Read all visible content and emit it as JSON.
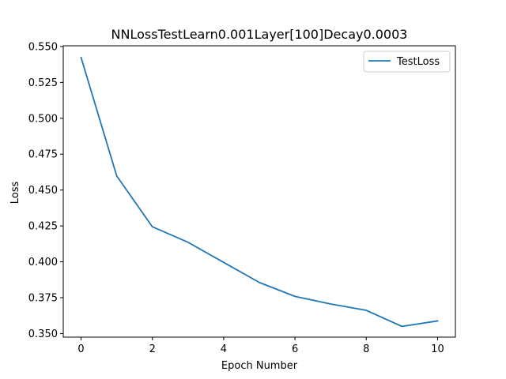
{
  "chart_data": {
    "type": "line",
    "title": "NNLossTestLearn0.001Layer[100]Decay0.0003",
    "xlabel": "Epoch Number",
    "ylabel": "Loss",
    "xlim": [
      -0.5,
      10.5
    ],
    "ylim": [
      0.3475,
      0.5505
    ],
    "xticks": [
      0,
      2,
      4,
      6,
      8,
      10
    ],
    "xtick_labels": [
      "0",
      "2",
      "4",
      "6",
      "8",
      "10"
    ],
    "yticks": [
      0.35,
      0.375,
      0.4,
      0.425,
      0.45,
      0.475,
      0.5,
      0.525,
      0.55
    ],
    "ytick_labels": [
      "0.350",
      "0.375",
      "0.400",
      "0.425",
      "0.450",
      "0.475",
      "0.500",
      "0.525",
      "0.550"
    ],
    "grid": false,
    "legend_position": "top-right",
    "series": [
      {
        "name": "TestLoss",
        "color": "#1f77b4",
        "x": [
          0,
          1,
          2,
          3,
          4,
          5,
          6,
          7,
          8,
          9,
          10
        ],
        "y": [
          0.5423,
          0.4598,
          0.4244,
          0.4136,
          0.3996,
          0.3856,
          0.3759,
          0.3706,
          0.3662,
          0.355,
          0.3588
        ]
      }
    ]
  }
}
